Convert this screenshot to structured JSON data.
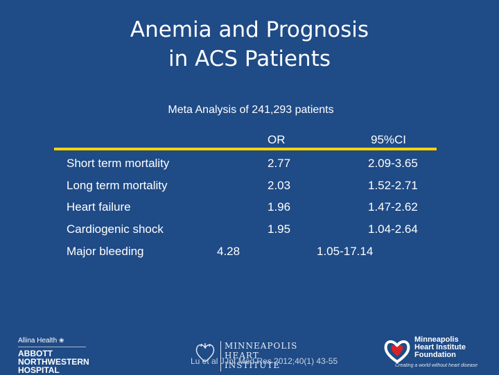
{
  "slide": {
    "title_line1": "Anemia and Prognosis",
    "title_line2": "in ACS Patients",
    "subtitle": "Meta Analysis of 241,293 patients"
  },
  "table": {
    "headers": {
      "or": "OR",
      "ci": "95%CI"
    },
    "rows": [
      {
        "label": "Short term mortality",
        "or": "2.77",
        "ci": "2.09-3.65"
      },
      {
        "label": "Long term mortality",
        "or": "2.03",
        "ci": "1.52-2.71"
      },
      {
        "label": "Heart failure",
        "or": "1.96",
        "ci": "1.47-2.62"
      },
      {
        "label": "Cardiogenic shock",
        "or": "1.95",
        "ci": "1.04-2.64"
      },
      {
        "label": "Major bleeding",
        "or": "4.28",
        "ci": "1.05-17.14"
      }
    ],
    "rule_color": "#ffd400"
  },
  "footer": {
    "citation": "Lu et al J Int Med Res 2012;40(1) 43-55",
    "allina": "Allina Health",
    "abbott_line1": "ABBOTT",
    "abbott_line2": "NORTHWESTERN",
    "abbott_line3": "HOSPITAL",
    "mhi_line1": "MINNEAPOLIS",
    "mhi_line2": "HEART",
    "mhi_line3": "INSTITUTE",
    "mhif_line1": "Minneapolis",
    "mhif_line2": "Heart Institute",
    "mhif_line3": "Foundation",
    "mhif_tagline": "Creating a world without heart disease"
  },
  "colors": {
    "background": "#1f4b86",
    "accent": "#ffd400",
    "logo_red": "#d6232b"
  }
}
